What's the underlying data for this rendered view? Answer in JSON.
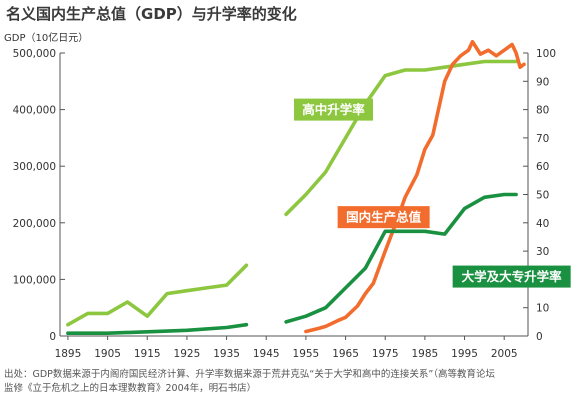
{
  "title": "名义国内生产总值（GDP）与升学率的变化",
  "source_lines": [
    "出处：GDP数据来源于内阁府国民经济计算、升学率数据来源于荒井克弘“关于大学和高中的连接关系”（高等教育论坛",
    "监修《立于危机之上的日本理数教育》2004年，明石书店）"
  ],
  "chart_data": {
    "type": "line",
    "ylabel": "GDP（10亿日元）",
    "x_ticks": [
      "1895",
      "1905",
      "1915",
      "1925",
      "1935",
      "1945",
      "1955",
      "1965",
      "1975",
      "1985",
      "1995",
      "2005"
    ],
    "xlim": [
      1893,
      2011
    ],
    "y_left": {
      "ticks": [
        "0",
        "100,000",
        "200,000",
        "300,000",
        "400,000",
        "500,000"
      ],
      "lim": [
        0,
        500000
      ]
    },
    "y_right": {
      "ticks": [
        "0",
        "10",
        "20",
        "30",
        "40",
        "50",
        "60",
        "70",
        "80",
        "90",
        "100"
      ],
      "lim": [
        0,
        100
      ]
    },
    "colors": {
      "high_school": "#8dc63f",
      "gdp": "#f26c2d",
      "university": "#1a9141"
    },
    "series": [
      {
        "name": "高中升学率",
        "key": "high_school",
        "axis": "right",
        "label_pos": {
          "year": 1952,
          "value": 80
        },
        "segments": [
          {
            "x": [
              1895,
              1900,
              1905,
              1910,
              1915,
              1920,
              1925,
              1930,
              1935,
              1940
            ],
            "y": [
              4,
              8,
              8,
              12,
              7,
              15,
              16,
              17,
              18,
              25
            ]
          },
          {
            "x": [
              1950,
              1955,
              1960,
              1965,
              1970,
              1975,
              1980,
              1985,
              1990,
              1995,
              2000,
              2005,
              2008
            ],
            "y": [
              43,
              50,
              58,
              70,
              82,
              92,
              94,
              94,
              95,
              96,
              97,
              97,
              97
            ]
          }
        ]
      },
      {
        "name": "国内生产总值",
        "key": "gdp",
        "axis": "left",
        "label_pos": {
          "year": 1963,
          "value": 210000
        },
        "segments": [
          {
            "x": [
              1955,
              1958,
              1960,
              1963,
              1965,
              1968,
              1970,
              1972,
              1975,
              1978,
              1980,
              1983,
              1985,
              1987,
              1990,
              1992,
              1994,
              1996,
              1997,
              1999,
              2001,
              2003,
              2005,
              2007,
              2008,
              2009,
              2010
            ],
            "y": [
              8000,
              13000,
              17000,
              27000,
              33000,
              53000,
              75000,
              93000,
              150000,
              205000,
              245000,
              285000,
              330000,
              355000,
              450000,
              480000,
              495000,
              505000,
              520000,
              498000,
              505000,
              495000,
              505000,
              515000,
              500000,
              475000,
              480000
            ]
          }
        ]
      },
      {
        "name": "大学及大专升学率",
        "key": "university",
        "axis": "right",
        "label_pos": {
          "year": 1992,
          "value": 21
        },
        "segments": [
          {
            "x": [
              1895,
              1905,
              1915,
              1925,
              1935,
              1940
            ],
            "y": [
              1,
              1,
              1.5,
              2,
              3,
              4
            ]
          },
          {
            "x": [
              1950,
              1955,
              1960,
              1965,
              1970,
              1975,
              1980,
              1985,
              1990,
              1995,
              2000,
              2005,
              2008
            ],
            "y": [
              5,
              7,
              10,
              17,
              24,
              37,
              37,
              37,
              36,
              45,
              49,
              50,
              50
            ]
          }
        ]
      }
    ]
  }
}
